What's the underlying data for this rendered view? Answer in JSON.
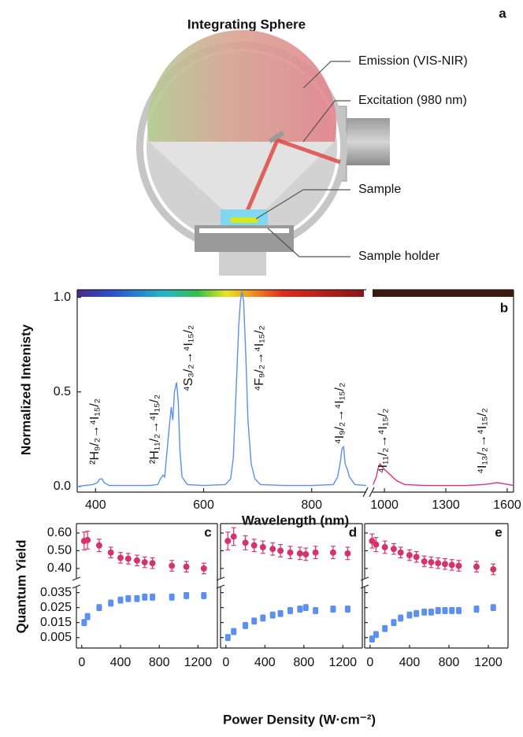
{
  "diagram": {
    "panel": "a",
    "title": "Integrating Sphere",
    "labels": [
      "Emission (VIS-NIR)",
      "Excitation (980 nm)",
      "Sample",
      "Sample holder"
    ]
  },
  "chart_data": [
    {
      "type": "line",
      "panel": "b",
      "ylabel": "Normalized Intenisty",
      "xlabel": "Wavelength (nm)",
      "ylim": [
        -0.03,
        1.04
      ],
      "yticks": [
        {
          "value": 0,
          "label": "0.0"
        },
        {
          "value": 0.5,
          "label": "0.5"
        },
        {
          "value": 1,
          "label": "1.0"
        }
      ],
      "segments": [
        {
          "xlim": [
            366,
            901
          ],
          "xticks": [
            400,
            600,
            800
          ],
          "series": [
            {
              "color": "#5b8ff0",
              "x": [
                366,
                380,
                395,
                403,
                408,
                412,
                416,
                425,
                450,
                500,
                515,
                520,
                525,
                528,
                532,
                536,
                540,
                543,
                546,
                550,
                553,
                556,
                560,
                570,
                600,
                640,
                650,
                655,
                660,
                665,
                668,
                671,
                674,
                678,
                682,
                688,
                695,
                705,
                750,
                800,
                840,
                848,
                853,
                856,
                859,
                862,
                866,
                870,
                880,
                901
              ],
              "values": [
                0,
                0.005,
                0.01,
                0.02,
                0.04,
                0.04,
                0.02,
                0.005,
                0.005,
                0.005,
                0.01,
                0.04,
                0.06,
                0.05,
                0.18,
                0.3,
                0.42,
                0.35,
                0.5,
                0.55,
                0.45,
                0.2,
                0.05,
                0.01,
                0.005,
                0.01,
                0.04,
                0.15,
                0.5,
                0.85,
                0.98,
                1.03,
                0.98,
                0.7,
                0.35,
                0.12,
                0.04,
                0.01,
                0.005,
                0.005,
                0.01,
                0.05,
                0.13,
                0.2,
                0.21,
                0.12,
                0.09,
                0.05,
                0.01,
                0.005
              ]
            }
          ]
        },
        {
          "xlim": [
            942,
            1631
          ],
          "xticks": [
            1000,
            1300,
            1600
          ],
          "series": [
            {
              "color": "#e0307a",
              "x": [
                945,
                960,
                970,
                978,
                985,
                1000,
                1030,
                1060,
                1100,
                1200,
                1400,
                1480,
                1520,
                1550,
                1580,
                1631
              ],
              "values": [
                0.01,
                0.05,
                0.1,
                0.12,
                0.11,
                0.09,
                0.06,
                0.03,
                0.01,
                0.005,
                0.005,
                0.01,
                0.015,
                0.02,
                0.015,
                0.005
              ]
            }
          ]
        }
      ],
      "annotations": [
        "²H₉/₂→⁴I₁₅/₂",
        "²H₁₁/₂→⁴I₁₅/₂",
        "⁴S₃/₂→⁴I₁₅/₂",
        "⁴F₉/₂→⁴I₁₅/₂",
        "⁴I₉/₂→⁴I₁₅/₂",
        "⁴I₁₁/₂→⁴I₁₅/₂",
        "⁴I₁₃/₂→⁴I₁₅/₂"
      ]
    },
    {
      "type": "scatter",
      "panel": "c",
      "ylabel": "Quantum Yield",
      "xlim": [
        -55,
        1400
      ],
      "xticks": [
        0,
        400,
        800,
        1200
      ],
      "ylim_top": [
        0.342,
        0.653
      ],
      "yticks_top": [
        {
          "value": 0.4,
          "label": "0.40"
        },
        {
          "value": 0.5,
          "label": "0.50"
        },
        {
          "value": 0.6,
          "label": "0.60"
        }
      ],
      "ylim_bottom": [
        -0.002,
        0.039
      ],
      "yticks_bottom": [
        {
          "value": 0.005,
          "label": "0.005"
        },
        {
          "value": 0.015,
          "label": "0.015"
        },
        {
          "value": 0.025,
          "label": "0.025"
        },
        {
          "value": 0.035,
          "label": "0.035"
        }
      ],
      "series": [
        {
          "color": "#d6336c",
          "marker": "circle",
          "axis": "top",
          "x": [
            25,
            60,
            180,
            300,
            400,
            480,
            570,
            650,
            730,
            930,
            1080,
            1260
          ],
          "values": [
            0.555,
            0.56,
            0.53,
            0.49,
            0.46,
            0.455,
            0.445,
            0.435,
            0.43,
            0.415,
            0.41,
            0.4
          ],
          "errors": [
            0.05,
            0.05,
            0.035,
            0.03,
            0.03,
            0.03,
            0.03,
            0.03,
            0.03,
            0.03,
            0.03,
            0.03
          ]
        },
        {
          "color": "#5b8ff0",
          "marker": "square",
          "axis": "bottom",
          "x": [
            25,
            60,
            180,
            300,
            400,
            480,
            570,
            650,
            730,
            930,
            1080,
            1260
          ],
          "values": [
            0.015,
            0.019,
            0.025,
            0.028,
            0.03,
            0.031,
            0.031,
            0.032,
            0.032,
            0.032,
            0.033,
            0.033
          ],
          "errors": [
            0.002,
            0.002,
            0.002,
            0.002,
            0.002,
            0.002,
            0.002,
            0.002,
            0.002,
            0.002,
            0.002,
            0.002
          ]
        }
      ]
    },
    {
      "type": "scatter",
      "panel": "d",
      "xlabel": "Power Density (W·cm⁻²)",
      "xlim": [
        -55,
        1400
      ],
      "xticks": [
        0,
        400,
        800,
        1200
      ],
      "series": [
        {
          "color": "#d6336c",
          "marker": "circle",
          "axis": "top",
          "x": [
            20,
            80,
            200,
            290,
            380,
            480,
            560,
            660,
            760,
            820,
            920,
            1100,
            1250
          ],
          "values": [
            0.555,
            0.58,
            0.545,
            0.53,
            0.52,
            0.51,
            0.5,
            0.49,
            0.485,
            0.48,
            0.49,
            0.49,
            0.485
          ],
          "errors": [
            0.05,
            0.05,
            0.04,
            0.035,
            0.035,
            0.035,
            0.035,
            0.035,
            0.035,
            0.035,
            0.035,
            0.035,
            0.035
          ]
        },
        {
          "color": "#5b8ff0",
          "marker": "square",
          "axis": "bottom",
          "x": [
            20,
            80,
            200,
            290,
            380,
            480,
            560,
            660,
            760,
            820,
            920,
            1100,
            1250
          ],
          "values": [
            0.005,
            0.009,
            0.013,
            0.016,
            0.018,
            0.02,
            0.021,
            0.023,
            0.024,
            0.025,
            0.023,
            0.024,
            0.024
          ],
          "errors": [
            0.002,
            0.002,
            0.002,
            0.002,
            0.002,
            0.002,
            0.002,
            0.002,
            0.002,
            0.002,
            0.002,
            0.002,
            0.002
          ]
        }
      ]
    },
    {
      "type": "scatter",
      "panel": "e",
      "xlim": [
        -55,
        1400
      ],
      "xticks": [
        0,
        400,
        800,
        1200
      ],
      "series": [
        {
          "color": "#d6336c",
          "marker": "circle",
          "axis": "top",
          "x": [
            20,
            60,
            150,
            240,
            310,
            400,
            470,
            550,
            620,
            690,
            760,
            830,
            900,
            1080,
            1250
          ],
          "values": [
            0.555,
            0.535,
            0.52,
            0.51,
            0.49,
            0.475,
            0.465,
            0.44,
            0.435,
            0.43,
            0.425,
            0.42,
            0.415,
            0.41,
            0.395
          ],
          "errors": [
            0.04,
            0.04,
            0.035,
            0.03,
            0.03,
            0.03,
            0.03,
            0.03,
            0.03,
            0.03,
            0.03,
            0.03,
            0.03,
            0.03,
            0.03
          ]
        },
        {
          "color": "#5b8ff0",
          "marker": "square",
          "axis": "bottom",
          "x": [
            20,
            60,
            150,
            240,
            310,
            400,
            470,
            550,
            620,
            690,
            760,
            830,
            900,
            1080,
            1250
          ],
          "values": [
            0.004,
            0.007,
            0.011,
            0.015,
            0.018,
            0.02,
            0.021,
            0.022,
            0.022,
            0.023,
            0.023,
            0.023,
            0.023,
            0.024,
            0.025
          ],
          "errors": [
            0.002,
            0.002,
            0.002,
            0.002,
            0.002,
            0.002,
            0.002,
            0.002,
            0.002,
            0.002,
            0.002,
            0.002,
            0.002,
            0.002,
            0.002
          ]
        }
      ]
    }
  ]
}
